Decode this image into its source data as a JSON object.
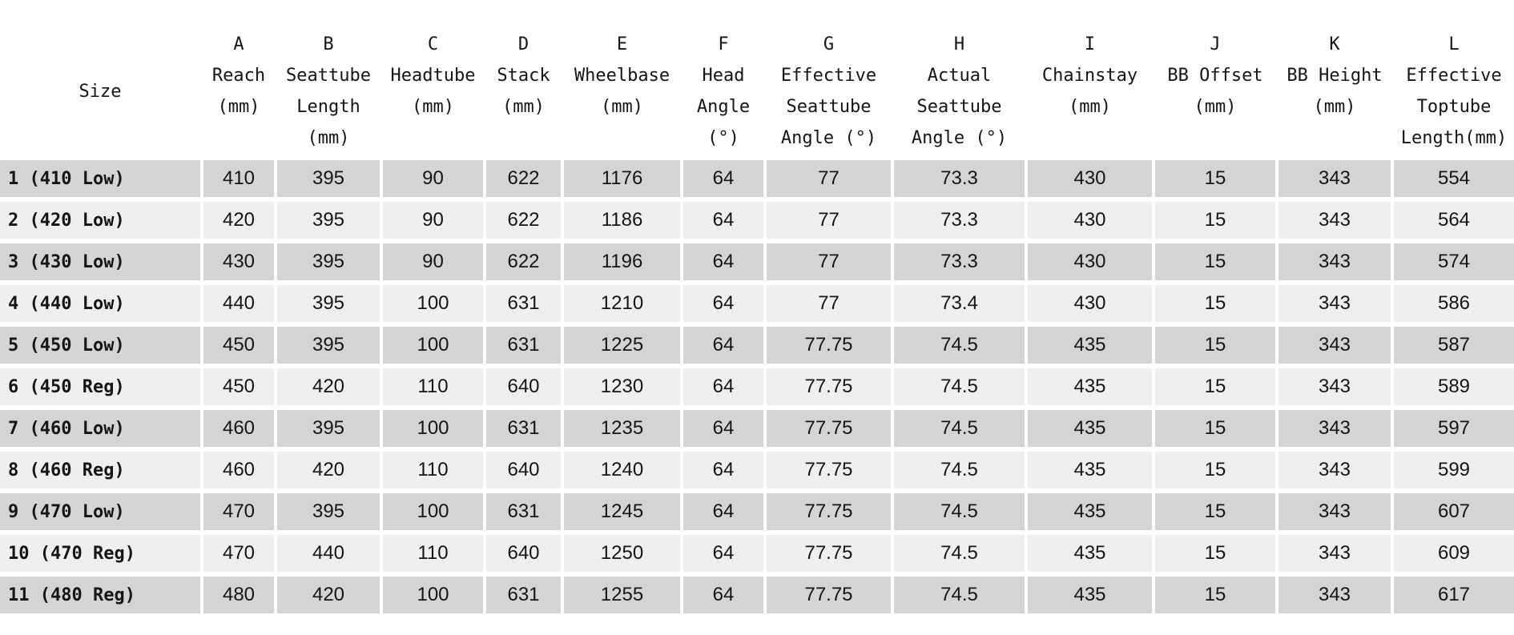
{
  "table": {
    "header": {
      "size": "Size",
      "columns": [
        {
          "letter": "A",
          "label": [
            "Reach",
            "(mm)"
          ]
        },
        {
          "letter": "B",
          "label": [
            "Seattube",
            "Length",
            "(mm)"
          ]
        },
        {
          "letter": "C",
          "label": [
            "Headtube",
            "(mm)"
          ]
        },
        {
          "letter": "D",
          "label": [
            "Stack",
            "(mm)"
          ]
        },
        {
          "letter": "E",
          "label": [
            "Wheelbase",
            "(mm)"
          ]
        },
        {
          "letter": "F",
          "label": [
            "Head",
            "Angle",
            "(°)"
          ]
        },
        {
          "letter": "G",
          "label": [
            "Effective",
            "Seattube",
            "Angle (°)"
          ]
        },
        {
          "letter": "H",
          "label": [
            "Actual",
            "Seattube",
            "Angle (°)"
          ]
        },
        {
          "letter": "I",
          "label": [
            "Chainstay",
            "(mm)"
          ]
        },
        {
          "letter": "J",
          "label": [
            "BB Offset",
            "(mm)"
          ]
        },
        {
          "letter": "K",
          "label": [
            "BB Height",
            "(mm)"
          ]
        },
        {
          "letter": "L",
          "label": [
            "Effective",
            "Toptube",
            "Length(mm)"
          ]
        }
      ]
    },
    "rows": [
      {
        "size": "1 (410 Low)",
        "values": [
          410,
          395,
          90,
          622,
          1176,
          64,
          77,
          73.3,
          430,
          15,
          343,
          554
        ]
      },
      {
        "size": "2 (420 Low)",
        "values": [
          420,
          395,
          90,
          622,
          1186,
          64,
          77,
          73.3,
          430,
          15,
          343,
          564
        ]
      },
      {
        "size": "3 (430 Low)",
        "values": [
          430,
          395,
          90,
          622,
          1196,
          64,
          77,
          73.3,
          430,
          15,
          343,
          574
        ]
      },
      {
        "size": "4 (440 Low)",
        "values": [
          440,
          395,
          100,
          631,
          1210,
          64,
          77,
          73.4,
          430,
          15,
          343,
          586
        ]
      },
      {
        "size": "5 (450 Low)",
        "values": [
          450,
          395,
          100,
          631,
          1225,
          64,
          77.75,
          74.5,
          435,
          15,
          343,
          587
        ]
      },
      {
        "size": "6 (450 Reg)",
        "values": [
          450,
          420,
          110,
          640,
          1230,
          64,
          77.75,
          74.5,
          435,
          15,
          343,
          589
        ]
      },
      {
        "size": "7 (460 Low)",
        "values": [
          460,
          395,
          100,
          631,
          1235,
          64,
          77.75,
          74.5,
          435,
          15,
          343,
          597
        ]
      },
      {
        "size": "8 (460 Reg)",
        "values": [
          460,
          420,
          110,
          640,
          1240,
          64,
          77.75,
          74.5,
          435,
          15,
          343,
          599
        ]
      },
      {
        "size": "9 (470 Low)",
        "values": [
          470,
          395,
          100,
          631,
          1245,
          64,
          77.75,
          74.5,
          435,
          15,
          343,
          607
        ]
      },
      {
        "size": "10 (470 Reg)",
        "values": [
          470,
          440,
          110,
          640,
          1250,
          64,
          77.75,
          74.5,
          435,
          15,
          343,
          609
        ]
      },
      {
        "size": "11 (480 Reg)",
        "values": [
          480,
          420,
          100,
          631,
          1255,
          64,
          77.75,
          74.5,
          435,
          15,
          343,
          617
        ]
      }
    ]
  }
}
